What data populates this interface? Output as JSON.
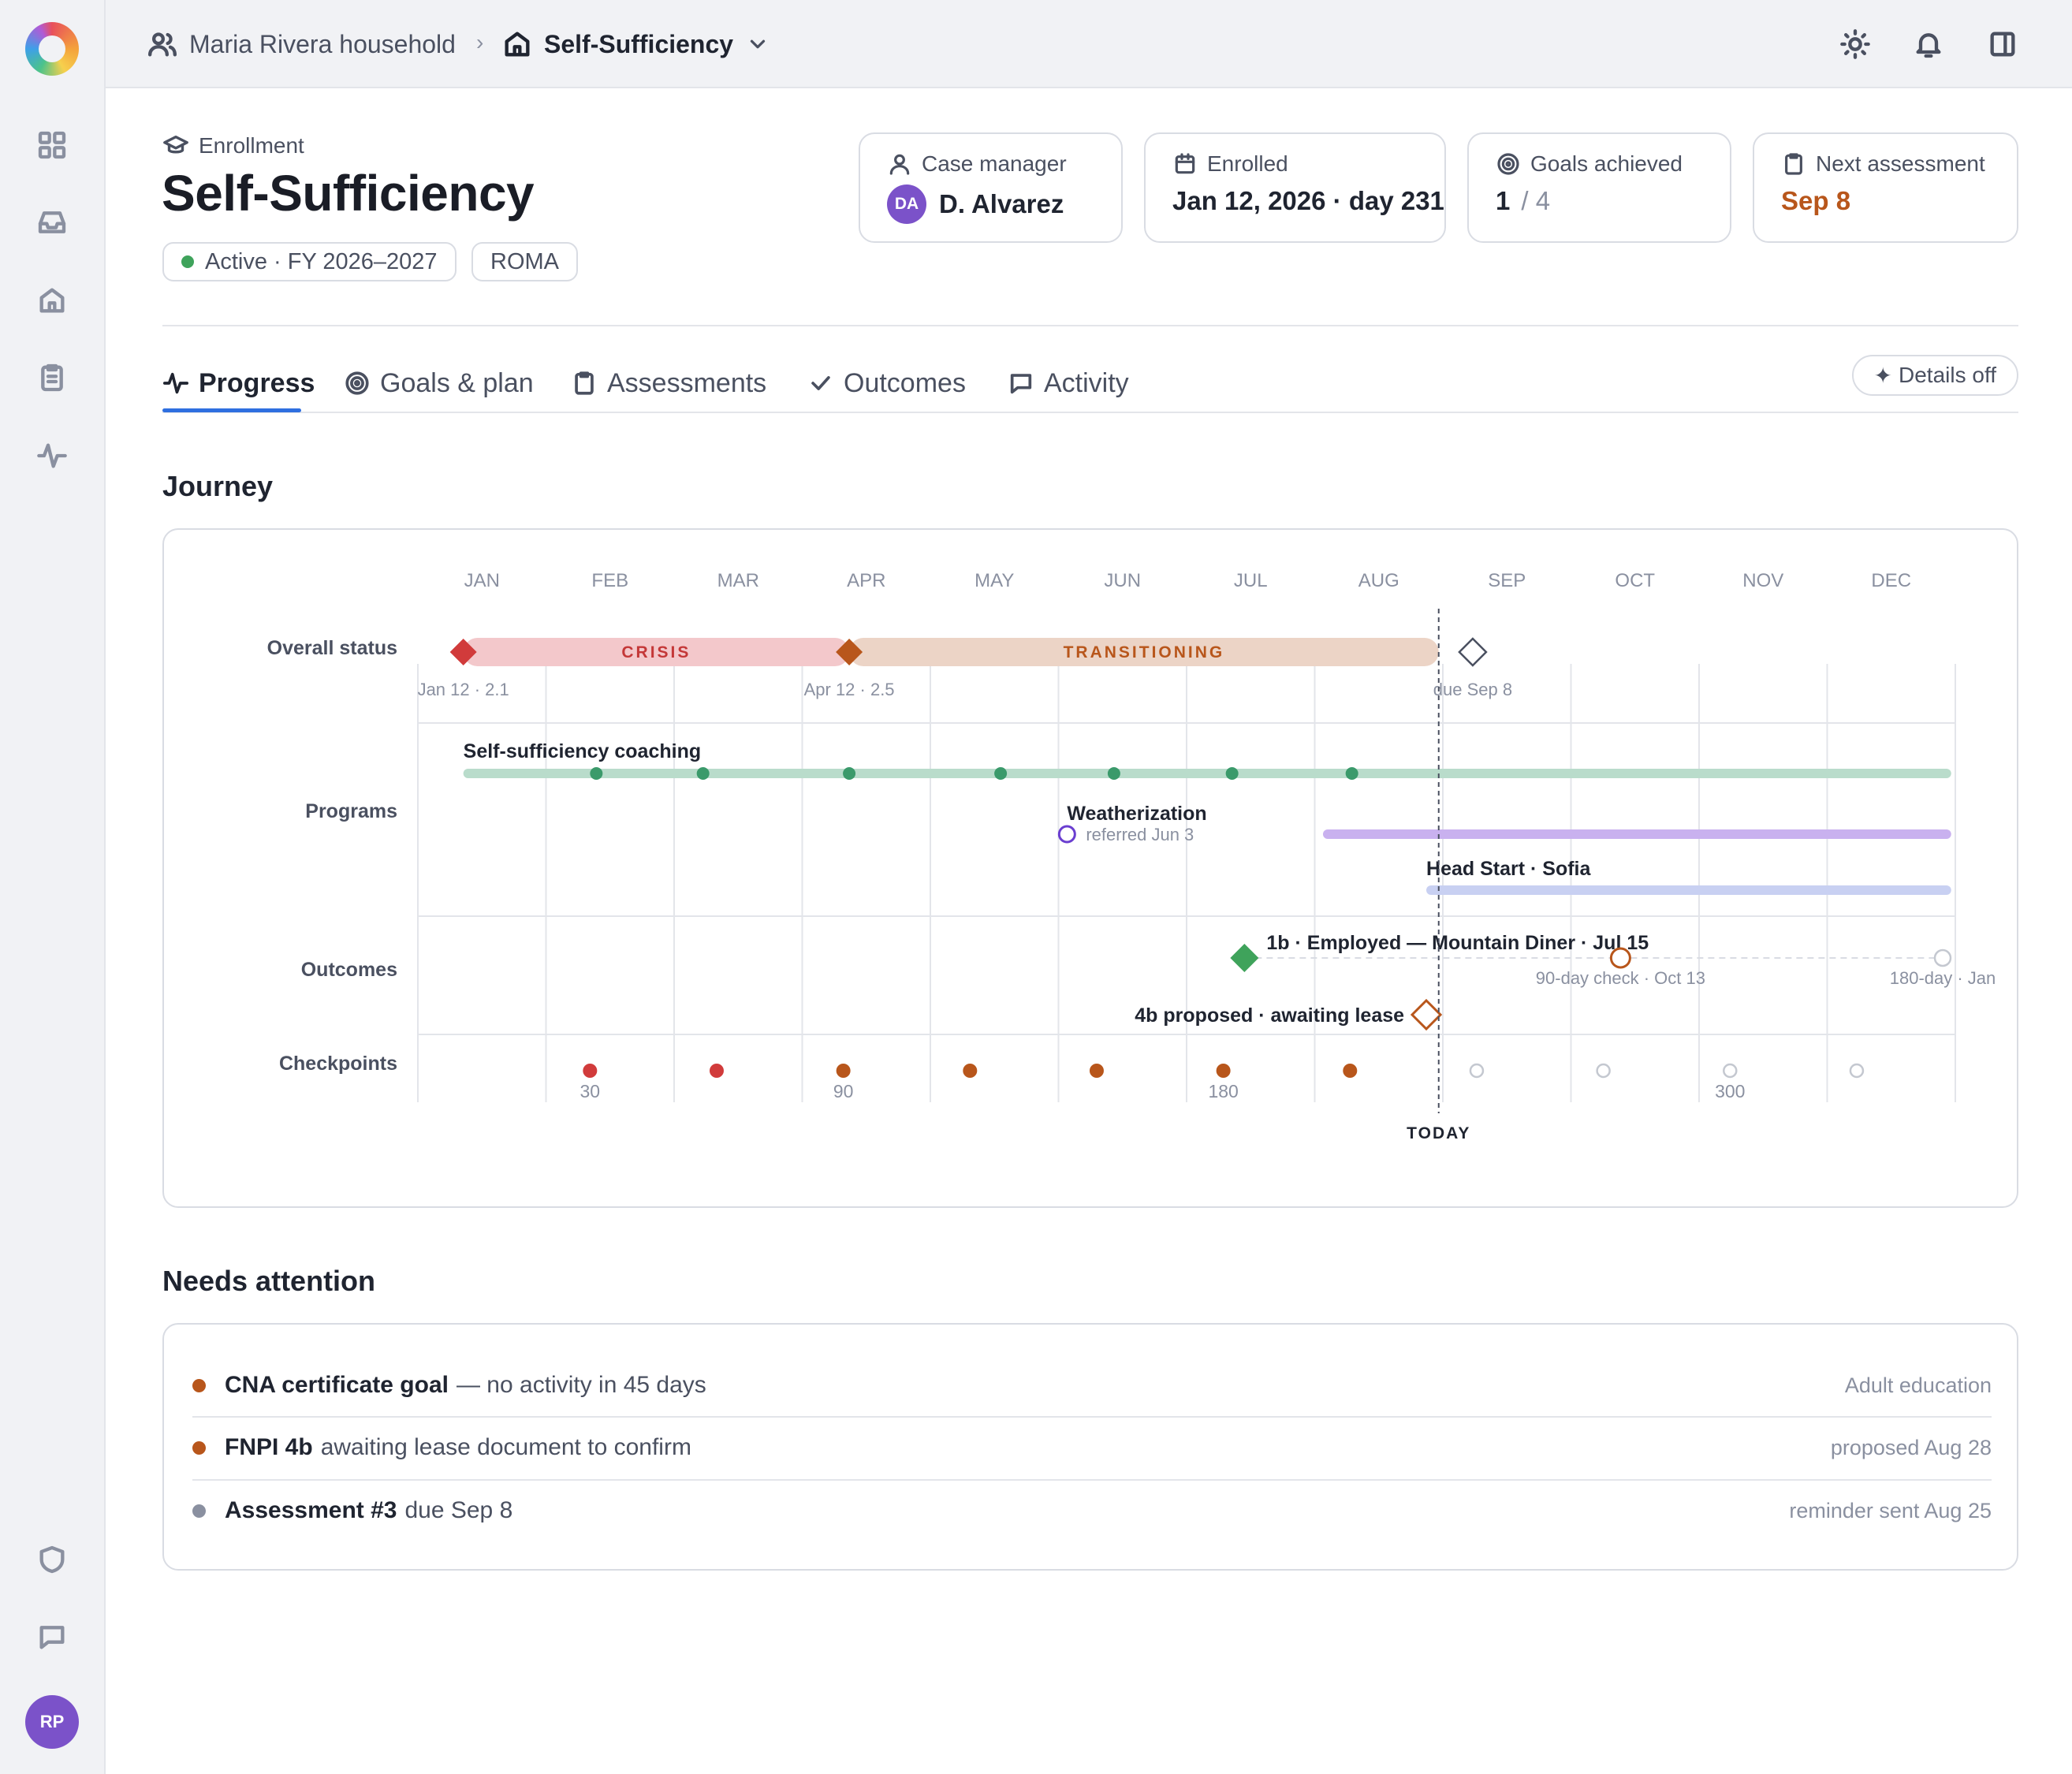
{
  "header": {
    "household": "Maria Rivera household",
    "breadcrumb_separator": "›",
    "program": "Self-Sufficiency"
  },
  "enrollment": {
    "label": "Enrollment",
    "title": "Self-Sufficiency",
    "status": "Active · FY 2026–2027",
    "tag": "ROMA",
    "stats": {
      "case_manager": {
        "label": "Case manager",
        "initials": "DA",
        "name": "D. Alvarez"
      },
      "enrolled": {
        "label": "Enrolled",
        "value": "Jan 12, 2026 · day 231"
      },
      "goals": {
        "label": "Goals achieved",
        "achieved": "1",
        "total": "/ 4"
      },
      "next_assessment": {
        "label": "Next assessment",
        "value": "Sep 8"
      }
    }
  },
  "tabs": [
    {
      "label": "Progress",
      "icon": "activity-icon",
      "active": true
    },
    {
      "label": "Goals & plan",
      "icon": "target-icon",
      "active": false
    },
    {
      "label": "Assessments",
      "icon": "clipboard-icon",
      "active": false
    },
    {
      "label": "Outcomes",
      "icon": "check-icon",
      "active": false
    },
    {
      "label": "Activity",
      "icon": "message-icon",
      "active": false
    }
  ],
  "details_toggle": {
    "label": "Details off",
    "icon": "sparkle-icon"
  },
  "journey": {
    "title": "Journey",
    "months": [
      "JAN",
      "FEB",
      "MAR",
      "APR",
      "MAY",
      "JUN",
      "JUL",
      "AUG",
      "SEP",
      "OCT",
      "NOV",
      "DEC"
    ],
    "rows": [
      "Overall status",
      "Programs",
      "Outcomes",
      "Checkpoints"
    ],
    "today_label": "TODAY",
    "today_date": "Aug 31",
    "status": {
      "phases": [
        {
          "label": "CRISIS",
          "start": "Jan 12",
          "end": "Apr 12",
          "color": "#f3c8cb",
          "text_color": "#c43838"
        },
        {
          "label": "TRANSITIONING",
          "start": "Apr 12",
          "end": "Aug 31",
          "color": "#ecd4c6",
          "text_color": "#b8561b"
        }
      ],
      "markers": [
        {
          "date": "Jan 12",
          "score": "2.1",
          "label": "Jan 12 · 2.1",
          "color": "#d13b3b"
        },
        {
          "date": "Apr 12",
          "score": "2.5",
          "label": "Apr 12 · 2.5",
          "color": "#b8561b"
        }
      ],
      "next_due": {
        "date": "Sep 8",
        "label": "due Sep 8"
      }
    },
    "programs": [
      {
        "name": "Self-sufficiency coaching",
        "start": "Jan 12",
        "end": "Dec 31",
        "color": "#b9dccb",
        "sessions": [
          "Feb 12",
          "Mar 8",
          "Apr 12",
          "May 18",
          "Jun 14",
          "Jul 12",
          "Aug 10"
        ]
      },
      {
        "name": "Weatherization",
        "referral": "referred Jun 3",
        "start": "Aug 3",
        "end": "Dec 31",
        "color": "#c9b1ef"
      },
      {
        "name": "Head Start · Sofia",
        "start": "Aug 28",
        "end": "Dec 31",
        "color": "#c8d0f2"
      }
    ],
    "outcomes": [
      {
        "label": "1b · Employed — Mountain Diner · Jul 15",
        "date": "Jul 15",
        "state": "achieved",
        "checks": [
          {
            "label": "90-day check · Oct 13",
            "date": "Oct 13"
          },
          {
            "label": "180-day · Jan",
            "date": "Jan"
          }
        ]
      },
      {
        "label": "4b proposed · awaiting lease",
        "date": "Aug 28",
        "state": "proposed"
      }
    ],
    "checkpoints": [
      {
        "day": 30,
        "label": "30",
        "done": true,
        "color": "#d13b3b"
      },
      {
        "day": 60,
        "label": "",
        "done": true,
        "color": "#d13b3b"
      },
      {
        "day": 90,
        "label": "90",
        "done": true,
        "color": "#b8561b"
      },
      {
        "day": 120,
        "label": "",
        "done": true,
        "color": "#b8561b"
      },
      {
        "day": 150,
        "label": "",
        "done": true,
        "color": "#b8561b"
      },
      {
        "day": 180,
        "label": "180",
        "done": true,
        "color": "#b8561b"
      },
      {
        "day": 210,
        "label": "",
        "done": true,
        "color": "#b8561b"
      },
      {
        "day": 240,
        "label": "",
        "done": false,
        "color": "#c4c8d0"
      },
      {
        "day": 270,
        "label": "",
        "done": false,
        "color": "#c4c8d0"
      },
      {
        "day": 300,
        "label": "300",
        "done": false,
        "color": "#c4c8d0"
      },
      {
        "day": 330,
        "label": "",
        "done": false,
        "color": "#c4c8d0"
      }
    ]
  },
  "needs_attention": {
    "title": "Needs attention",
    "items": [
      {
        "strong": "CNA certificate goal",
        "text": "— no activity in 45 days",
        "meta": "Adult education",
        "dot_color": "#b8561b"
      },
      {
        "strong": "FNPI 4b",
        "text": "awaiting lease document to confirm",
        "meta": "proposed Aug 28",
        "dot_color": "#b8561b"
      },
      {
        "strong": "Assessment #3",
        "text": "due Sep 8",
        "meta": "reminder sent Aug 25",
        "dot_color": "#8a90a0"
      }
    ]
  },
  "user": {
    "initials": "RP"
  },
  "colors": {
    "accent": "#2f6fe0",
    "brand_avatar": "#7b52c9",
    "warning": "#b8561b",
    "danger": "#d13b3b",
    "success": "#3fa35b"
  }
}
